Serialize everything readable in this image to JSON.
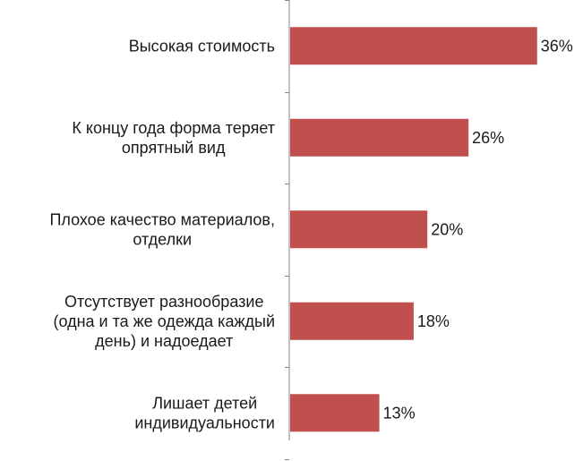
{
  "chart_data": {
    "type": "bar",
    "orientation": "horizontal",
    "title": "",
    "xlabel": "",
    "ylabel": "",
    "grid": false,
    "legend": "none",
    "xlim": [
      0,
      40
    ],
    "value_suffix": "%",
    "bar_color": "#C0504D",
    "axis_color": "#868686",
    "categories": [
      [
        "Высокая стоимость"
      ],
      [
        "К концу года форма теряет",
        "опрятный вид"
      ],
      [
        "Плохое качество материалов,",
        "отделки"
      ],
      [
        "Отсутствует разнообразие",
        "(одна и та же одежда каждый",
        "день) и надоедает"
      ],
      [
        "Лишает детей",
        "индивидуальности"
      ]
    ],
    "values": [
      36,
      26,
      20,
      18,
      13
    ],
    "data_labels": [
      "36%",
      "26%",
      "20%",
      "18%",
      "13%"
    ]
  }
}
